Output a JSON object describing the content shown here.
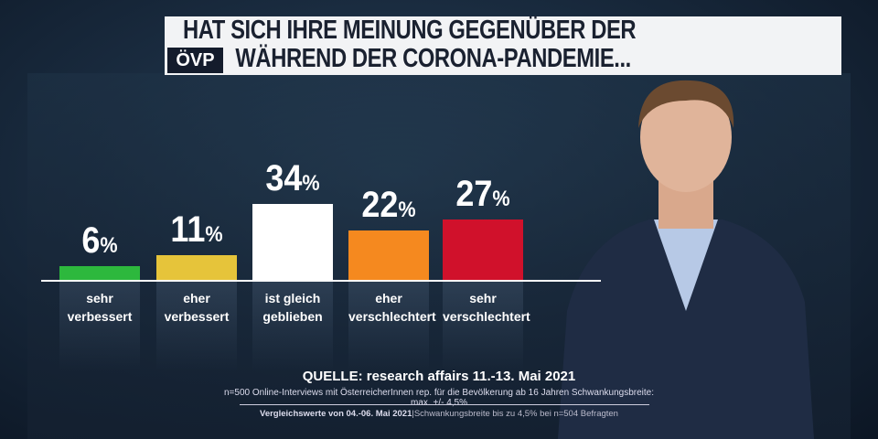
{
  "header": {
    "title_line1": "HAT SICH IHRE MEINUNG GEGENÜBER DER",
    "title_line2": "WÄHREND DER CORONA-PANDEMIE...",
    "logo": "ÖVP"
  },
  "chart_data": {
    "type": "bar",
    "categories": [
      "sehr verbessert",
      "eher verbessert",
      "ist gleich geblieben",
      "eher verschlechtert",
      "sehr verschlechtert"
    ],
    "category_lines": [
      [
        "sehr",
        "verbessert"
      ],
      [
        "eher",
        "verbessert"
      ],
      [
        "ist gleich",
        "geblieben"
      ],
      [
        "eher",
        "verschlechtert"
      ],
      [
        "sehr",
        "verschlechtert"
      ]
    ],
    "values": [
      6,
      11,
      34,
      22,
      27
    ],
    "value_labels": [
      "6",
      "11",
      "34",
      "22",
      "27"
    ],
    "unit": "%",
    "colors": [
      "#2db83d",
      "#e6c43a",
      "#ffffff",
      "#f5891f",
      "#d0112b"
    ],
    "ylim": [
      0,
      40
    ],
    "grid": false
  },
  "source": {
    "line1": "QUELLE: research affairs 11.-13. Mai 2021",
    "line2": "n=500 Online-Interviews mit ÖsterreicherInnen rep. für die Bevölkerung ab 16 Jahren  Schwankungsbreite: max. +/- 4,5%",
    "line3_bold": "Vergleichswerte von  04.-06. Mai 2021",
    "line3_rest": "|Schwankungsbreite bis zu 4,5% bei n=504 Befragten"
  }
}
